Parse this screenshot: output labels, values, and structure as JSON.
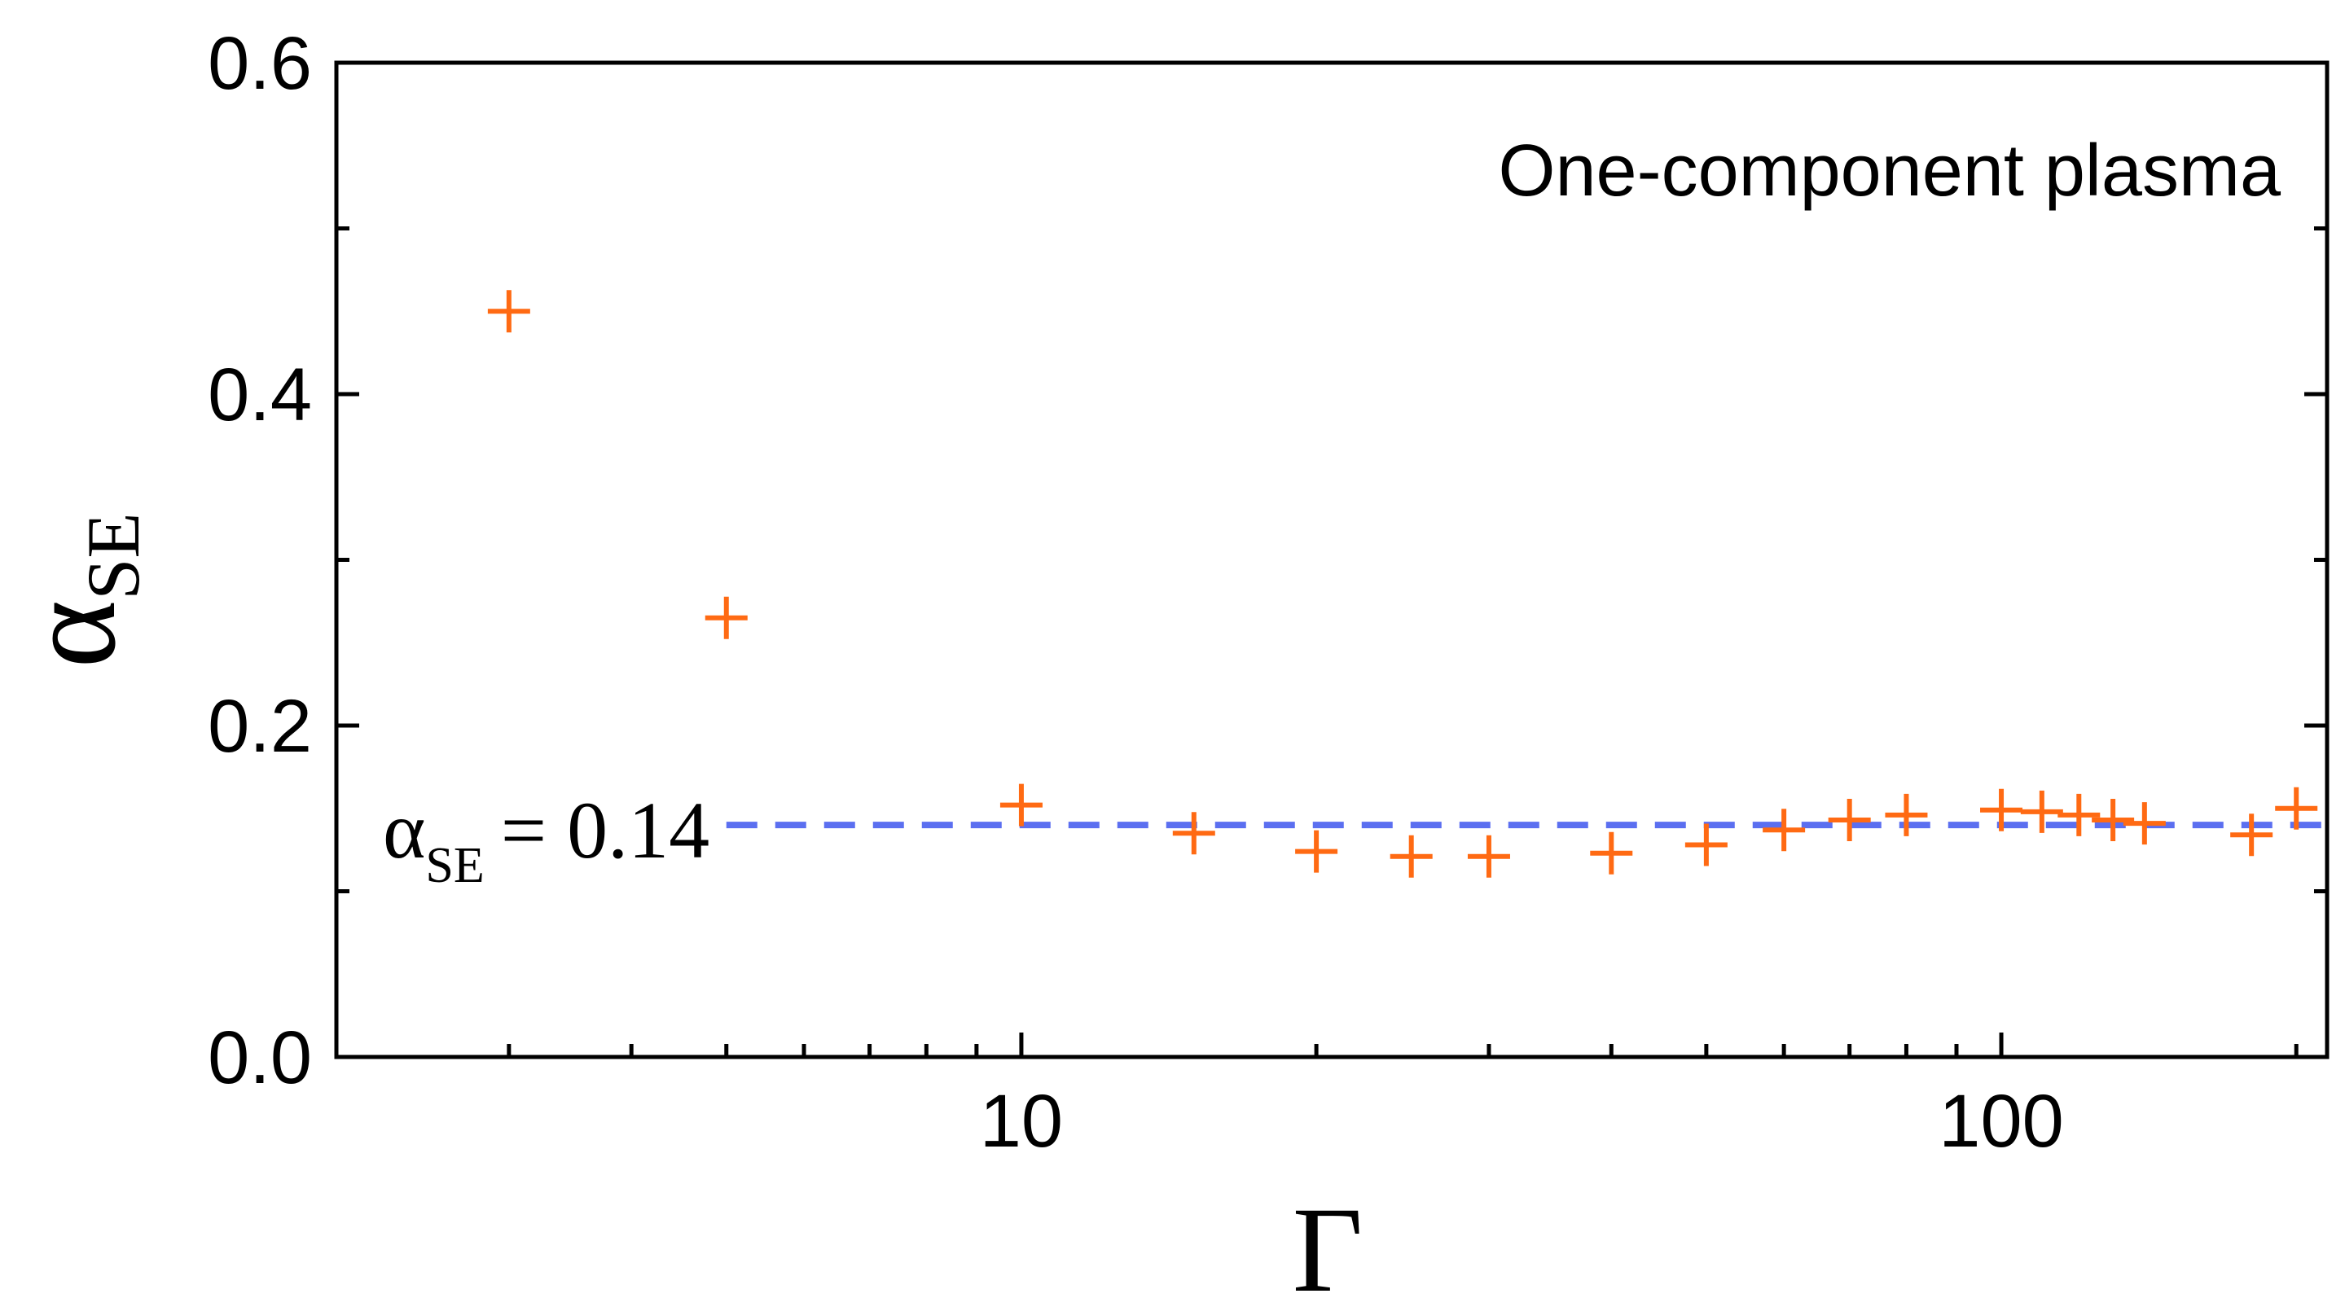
{
  "chart_data": {
    "type": "scatter",
    "title": "",
    "xlabel": "Γ",
    "ylabel": {
      "symbol": "α",
      "subscript": "SE"
    },
    "xscale": "log",
    "xlim": [
      2,
      215
    ],
    "ylim": [
      0,
      0.6
    ],
    "x_ticks": [
      10,
      100
    ],
    "x_tick_labels": [
      "10",
      "100"
    ],
    "y_ticks": [
      0.0,
      0.2,
      0.4,
      0.6
    ],
    "y_tick_labels": [
      "0.0",
      "0.2",
      "0.4",
      "0.6"
    ],
    "y_minor_ticks": [
      0.1,
      0.3,
      0.5
    ],
    "annotation": "One-component plasma",
    "series": [
      {
        "marker": "plus",
        "color": "#ff6a13",
        "x": [
          3,
          5,
          10,
          15,
          20,
          25,
          30,
          40,
          50,
          60,
          70,
          80,
          100,
          110,
          120,
          130,
          140,
          180,
          200
        ],
        "y": [
          0.45,
          0.265,
          0.152,
          0.135,
          0.124,
          0.121,
          0.121,
          0.123,
          0.128,
          0.137,
          0.143,
          0.146,
          0.149,
          0.148,
          0.146,
          0.143,
          0.141,
          0.134,
          0.15
        ]
      }
    ],
    "reference_line": {
      "y": 0.14,
      "style": "dashed",
      "color": "#5b6ff0",
      "x_start": 5,
      "label": {
        "symbol": "α",
        "subscript": "SE",
        "text": "= 0.14"
      }
    }
  }
}
